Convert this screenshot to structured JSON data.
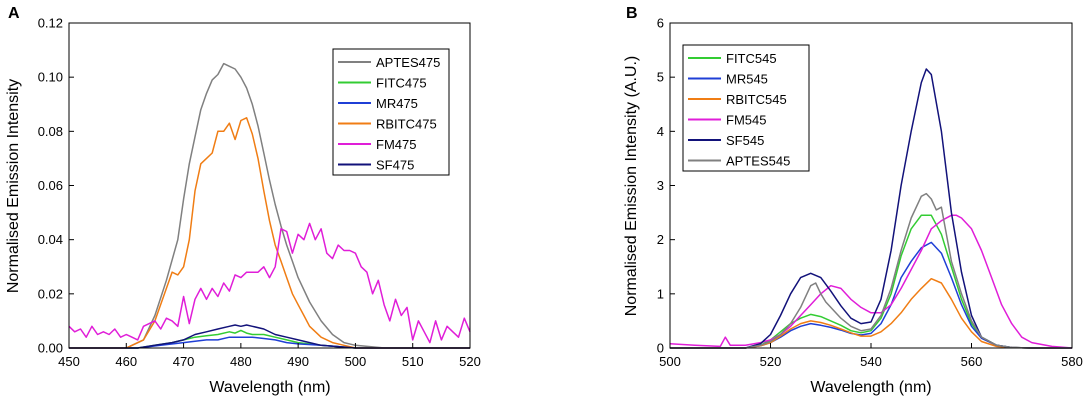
{
  "chart_data": [
    {
      "type": "line",
      "panel_label": "A",
      "xlabel": "Wavelength (nm)",
      "ylabel": "Normalised Emission Intensity",
      "xlim": [
        450,
        520
      ],
      "ylim": [
        0,
        0.12
      ],
      "xticks": [
        "450",
        "460",
        "470",
        "480",
        "490",
        "500",
        "510",
        "520"
      ],
      "yticks": [
        "0.00",
        "0.02",
        "0.04",
        "0.06",
        "0.08",
        "0.10",
        "0.12"
      ],
      "legend_position": "top-right",
      "series": [
        {
          "name": "APTES475",
          "color": "#808080",
          "x": [
            450,
            460,
            463,
            465,
            467,
            469,
            470,
            471,
            472,
            473,
            474,
            475,
            476,
            477,
            478,
            479,
            480,
            481,
            482,
            483,
            484,
            485,
            486,
            487,
            488,
            489,
            490,
            492,
            494,
            496,
            498,
            500,
            505,
            510,
            515,
            520
          ],
          "y": [
            0,
            0,
            0.003,
            0.012,
            0.025,
            0.04,
            0.055,
            0.068,
            0.078,
            0.088,
            0.094,
            0.099,
            0.101,
            0.105,
            0.104,
            0.103,
            0.1,
            0.096,
            0.09,
            0.082,
            0.072,
            0.062,
            0.053,
            0.045,
            0.038,
            0.032,
            0.026,
            0.017,
            0.01,
            0.005,
            0.002,
            0.001,
            0,
            0,
            0,
            0
          ]
        },
        {
          "name": "FITC475",
          "color": "#33cc33",
          "x": [
            450,
            462,
            465,
            468,
            470,
            472,
            474,
            476,
            478,
            479,
            480,
            481,
            482,
            484,
            486,
            488,
            490,
            494,
            500,
            510,
            520
          ],
          "y": [
            0,
            0,
            0.001,
            0.002,
            0.003,
            0.004,
            0.0045,
            0.005,
            0.006,
            0.0055,
            0.0065,
            0.0055,
            0.005,
            0.005,
            0.004,
            0.003,
            0.002,
            0.001,
            0,
            0,
            0
          ]
        },
        {
          "name": "MR475",
          "color": "#1f3fd6",
          "x": [
            450,
            462,
            466,
            470,
            474,
            476,
            478,
            480,
            482,
            484,
            486,
            488,
            490,
            494,
            500,
            510,
            520
          ],
          "y": [
            0,
            0,
            0.001,
            0.002,
            0.003,
            0.003,
            0.004,
            0.004,
            0.004,
            0.0035,
            0.003,
            0.002,
            0.0015,
            0.001,
            0,
            0,
            0
          ]
        },
        {
          "name": "RBITC475",
          "color": "#f07d14",
          "x": [
            450,
            460,
            463,
            465,
            467,
            468,
            469,
            470,
            471,
            472,
            473,
            474,
            475,
            476,
            477,
            478,
            479,
            480,
            481,
            482,
            483,
            484,
            485,
            486,
            487,
            488,
            489,
            490,
            491,
            492,
            494,
            496,
            498,
            500,
            505,
            510,
            520
          ],
          "y": [
            0,
            0,
            0.003,
            0.01,
            0.022,
            0.028,
            0.027,
            0.03,
            0.04,
            0.058,
            0.068,
            0.07,
            0.072,
            0.08,
            0.08,
            0.083,
            0.077,
            0.084,
            0.085,
            0.079,
            0.07,
            0.058,
            0.047,
            0.038,
            0.032,
            0.026,
            0.02,
            0.016,
            0.012,
            0.008,
            0.004,
            0.002,
            0.001,
            0,
            0,
            0,
            0
          ]
        },
        {
          "name": "FM475",
          "color": "#e01ed8",
          "x": [
            450,
            451,
            452,
            453,
            454,
            455,
            456,
            457,
            458,
            459,
            460,
            461,
            462,
            463,
            464,
            465,
            466,
            467,
            468,
            469,
            470,
            471,
            472,
            473,
            474,
            475,
            476,
            477,
            478,
            479,
            480,
            481,
            482,
            483,
            484,
            485,
            486,
            487,
            488,
            489,
            490,
            491,
            492,
            493,
            494,
            495,
            496,
            497,
            498,
            499,
            500,
            501,
            502,
            503,
            504,
            505,
            506,
            507,
            508,
            509,
            510,
            511,
            512,
            513,
            514,
            515,
            516,
            517,
            518,
            519,
            520
          ],
          "y": [
            0.008,
            0.006,
            0.007,
            0.004,
            0.008,
            0.005,
            0.006,
            0.005,
            0.007,
            0.004,
            0.005,
            0.004,
            0.003,
            0.008,
            0.009,
            0.01,
            0.007,
            0.011,
            0.01,
            0.008,
            0.019,
            0.009,
            0.018,
            0.022,
            0.018,
            0.022,
            0.019,
            0.024,
            0.021,
            0.027,
            0.026,
            0.028,
            0.028,
            0.028,
            0.03,
            0.026,
            0.03,
            0.044,
            0.043,
            0.035,
            0.042,
            0.04,
            0.046,
            0.04,
            0.044,
            0.035,
            0.033,
            0.038,
            0.036,
            0.036,
            0.035,
            0.03,
            0.028,
            0.02,
            0.025,
            0.016,
            0.01,
            0.018,
            0.012,
            0.015,
            0.003,
            0.01,
            0.006,
            0.002,
            0.01,
            0.003,
            0.008,
            0.006,
            0.004,
            0.011,
            0.006
          ]
        },
        {
          "name": "SF475",
          "color": "#12127a",
          "x": [
            450,
            462,
            465,
            468,
            470,
            472,
            474,
            476,
            478,
            479,
            480,
            481,
            482,
            484,
            486,
            488,
            490,
            494,
            500,
            510,
            520
          ],
          "y": [
            0,
            0,
            0.001,
            0.002,
            0.003,
            0.005,
            0.006,
            0.007,
            0.008,
            0.0085,
            0.008,
            0.0085,
            0.008,
            0.007,
            0.005,
            0.004,
            0.003,
            0.001,
            0,
            0,
            0
          ]
        }
      ]
    },
    {
      "type": "line",
      "panel_label": "B",
      "xlabel": "Wavelength (nm)",
      "ylabel": "Normalised Emission Intensity (A.U.)",
      "xlim": [
        500,
        580
      ],
      "ylim": [
        0,
        6
      ],
      "xticks": [
        "500",
        "520",
        "540",
        "560",
        "580"
      ],
      "yticks": [
        "0",
        "1",
        "2",
        "3",
        "4",
        "5",
        "6"
      ],
      "legend_position": "top-left",
      "series": [
        {
          "name": "FITC545",
          "color": "#33cc33",
          "x": [
            500,
            515,
            518,
            520,
            522,
            524,
            526,
            528,
            530,
            532,
            534,
            536,
            538,
            540,
            542,
            544,
            546,
            548,
            550,
            552,
            554,
            556,
            558,
            560,
            562,
            565,
            568,
            572,
            576,
            580
          ],
          "y": [
            0,
            0,
            0.05,
            0.15,
            0.3,
            0.45,
            0.55,
            0.62,
            0.58,
            0.5,
            0.42,
            0.32,
            0.28,
            0.32,
            0.55,
            1.0,
            1.7,
            2.2,
            2.45,
            2.45,
            2.1,
            1.5,
            0.9,
            0.45,
            0.2,
            0.05,
            0.01,
            0,
            0,
            0
          ]
        },
        {
          "name": "MR545",
          "color": "#1f3fd6",
          "x": [
            500,
            515,
            518,
            520,
            522,
            524,
            526,
            528,
            530,
            532,
            534,
            536,
            538,
            540,
            542,
            544,
            546,
            548,
            550,
            552,
            554,
            556,
            558,
            560,
            562,
            565,
            568,
            572,
            576,
            580
          ],
          "y": [
            0,
            0,
            0.04,
            0.1,
            0.2,
            0.32,
            0.4,
            0.45,
            0.42,
            0.38,
            0.33,
            0.27,
            0.24,
            0.27,
            0.45,
            0.8,
            1.3,
            1.6,
            1.85,
            1.95,
            1.75,
            1.3,
            0.8,
            0.4,
            0.18,
            0.05,
            0.01,
            0,
            0,
            0
          ]
        },
        {
          "name": "RBITC545",
          "color": "#f07d14",
          "x": [
            500,
            515,
            518,
            520,
            522,
            524,
            526,
            528,
            530,
            532,
            534,
            536,
            538,
            540,
            542,
            544,
            546,
            548,
            550,
            552,
            554,
            556,
            558,
            560,
            562,
            565,
            568,
            572,
            576,
            580
          ],
          "y": [
            0,
            0,
            0.04,
            0.1,
            0.22,
            0.35,
            0.45,
            0.5,
            0.47,
            0.42,
            0.35,
            0.28,
            0.22,
            0.22,
            0.3,
            0.45,
            0.65,
            0.9,
            1.1,
            1.28,
            1.2,
            0.9,
            0.55,
            0.3,
            0.12,
            0.03,
            0.01,
            0,
            0,
            0
          ]
        },
        {
          "name": "FM545",
          "color": "#e01ed8",
          "x": [
            500,
            505,
            510,
            511,
            512,
            515,
            518,
            520,
            522,
            524,
            526,
            528,
            530,
            532,
            534,
            536,
            538,
            540,
            542,
            544,
            546,
            548,
            550,
            552,
            554,
            556,
            557,
            558,
            560,
            562,
            564,
            566,
            568,
            570,
            572,
            576,
            580
          ],
          "y": [
            0.08,
            0.05,
            0.03,
            0.2,
            0.05,
            0.05,
            0.1,
            0.15,
            0.25,
            0.4,
            0.6,
            0.8,
            1.0,
            1.15,
            1.1,
            0.9,
            0.75,
            0.65,
            0.65,
            0.8,
            1.1,
            1.45,
            1.8,
            2.2,
            2.35,
            2.45,
            2.45,
            2.4,
            2.2,
            1.8,
            1.3,
            0.8,
            0.45,
            0.2,
            0.1,
            0.03,
            0
          ]
        },
        {
          "name": "SF545",
          "color": "#12127a",
          "x": [
            500,
            515,
            518,
            520,
            522,
            524,
            526,
            528,
            530,
            532,
            534,
            536,
            538,
            540,
            542,
            544,
            546,
            548,
            550,
            551,
            552,
            554,
            556,
            558,
            560,
            562,
            565,
            568,
            572,
            576,
            580
          ],
          "y": [
            0,
            0,
            0.08,
            0.25,
            0.6,
            1.0,
            1.3,
            1.38,
            1.3,
            1.05,
            0.78,
            0.55,
            0.45,
            0.48,
            0.9,
            1.8,
            3.0,
            4.0,
            4.9,
            5.15,
            5.05,
            4.0,
            2.5,
            1.4,
            0.6,
            0.2,
            0.05,
            0.01,
            0,
            0,
            0
          ]
        },
        {
          "name": "APTES545",
          "color": "#808080",
          "x": [
            500,
            515,
            518,
            520,
            522,
            524,
            526,
            528,
            529,
            530,
            531,
            532,
            534,
            536,
            538,
            540,
            542,
            544,
            546,
            548,
            550,
            551,
            552,
            553,
            554,
            555,
            556,
            558,
            560,
            562,
            565,
            568,
            572,
            576,
            580
          ],
          "y": [
            0,
            0,
            0.05,
            0.12,
            0.25,
            0.45,
            0.75,
            1.15,
            1.2,
            1.0,
            0.85,
            0.75,
            0.55,
            0.4,
            0.32,
            0.35,
            0.6,
            1.1,
            1.8,
            2.4,
            2.8,
            2.85,
            2.75,
            2.55,
            2.6,
            2.1,
            1.6,
            1.0,
            0.5,
            0.2,
            0.05,
            0.01,
            0,
            0,
            0
          ]
        }
      ]
    }
  ]
}
